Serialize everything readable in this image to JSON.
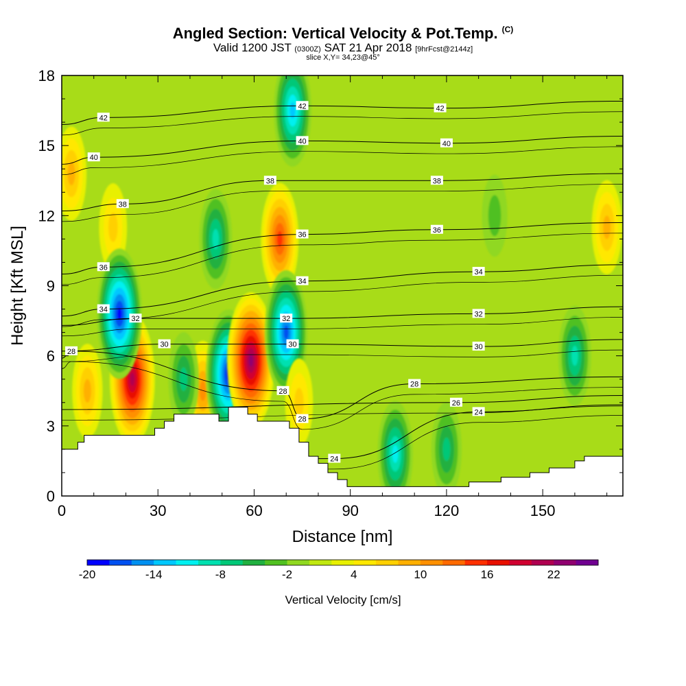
{
  "title": {
    "main": "Angled Section: Vertical Velocity & Pot.Temp.",
    "units_tag": "(C)",
    "valid_prefix": "Valid 1200 JST",
    "valid_utc": "(0300Z)",
    "valid_date": "SAT 21 Apr 2018",
    "forecast_tag": "[9hrFcst@2144z]",
    "slice": "slice X,Y= 34,23@45°"
  },
  "chart_data": {
    "type": "heatmap",
    "xlabel": "Distance [nm]",
    "ylabel": "Height [Kft MSL]",
    "xlim": [
      0,
      175
    ],
    "ylim": [
      0,
      18
    ],
    "x_ticks": [
      0,
      30,
      60,
      90,
      120,
      150
    ],
    "y_ticks": [
      0,
      3,
      6,
      9,
      12,
      15,
      18
    ],
    "colorbar": {
      "title": "Vertical Velocity [cm/s]",
      "levels": [
        -20,
        -18,
        -16,
        -14,
        -12,
        -10,
        -8,
        -6,
        -4,
        -2,
        0,
        2,
        4,
        6,
        8,
        10,
        12,
        14,
        16,
        18,
        20,
        22,
        24,
        26
      ],
      "tick_labels": [
        -20,
        -14,
        -8,
        -2,
        4,
        10,
        16,
        22
      ],
      "colors": [
        "#0000ff",
        "#0050f0",
        "#0090f0",
        "#00c8ff",
        "#00f0f0",
        "#00e0b0",
        "#00c878",
        "#20b040",
        "#50c020",
        "#90d820",
        "#c0e810",
        "#e8f000",
        "#ffe800",
        "#ffd000",
        "#ffb000",
        "#ff9000",
        "#ff6a00",
        "#ff3000",
        "#e81000",
        "#d00030",
        "#b00050",
        "#900070",
        "#700090"
      ]
    },
    "vertical_velocity_features": [
      {
        "x": 3,
        "y": 13.8,
        "value": 8
      },
      {
        "x": 22,
        "y": 5.0,
        "value": 20
      },
      {
        "x": 8,
        "y": 4.5,
        "value": 8
      },
      {
        "x": 16,
        "y": 11.5,
        "value": 6
      },
      {
        "x": 18,
        "y": 7.8,
        "value": -20
      },
      {
        "x": 44,
        "y": 4.5,
        "value": 10
      },
      {
        "x": 38,
        "y": 5.0,
        "value": -8
      },
      {
        "x": 52,
        "y": 5.2,
        "value": -20
      },
      {
        "x": 59,
        "y": 5.8,
        "value": 22
      },
      {
        "x": 48,
        "y": 11.0,
        "value": -10
      },
      {
        "x": 68,
        "y": 11.0,
        "value": 14
      },
      {
        "x": 70,
        "y": 7.0,
        "value": -18
      },
      {
        "x": 74,
        "y": 4.0,
        "value": 6
      },
      {
        "x": 72,
        "y": 16.5,
        "value": -14
      },
      {
        "x": 104,
        "y": 1.8,
        "value": -12
      },
      {
        "x": 120,
        "y": 2.0,
        "value": -8
      },
      {
        "x": 170,
        "y": 11.5,
        "value": 8
      },
      {
        "x": 135,
        "y": 12.0,
        "value": -4
      },
      {
        "x": 160,
        "y": 6.0,
        "value": -10
      }
    ],
    "theta_contours": [
      {
        "value": 24,
        "labels": [
          {
            "x": 85,
            "y": 1.6
          },
          {
            "x": 130,
            "y": 3.6
          }
        ]
      },
      {
        "value": 26,
        "labels": [
          {
            "x": 123,
            "y": 4.0
          }
        ]
      },
      {
        "value": 28,
        "labels": [
          {
            "x": 3,
            "y": 6.2
          },
          {
            "x": 69,
            "y": 4.5
          },
          {
            "x": 75,
            "y": 3.3
          },
          {
            "x": 110,
            "y": 4.8
          }
        ]
      },
      {
        "value": 30,
        "labels": [
          {
            "x": 32,
            "y": 6.5
          },
          {
            "x": 72,
            "y": 6.5
          },
          {
            "x": 130,
            "y": 6.4
          }
        ]
      },
      {
        "value": 32,
        "labels": [
          {
            "x": 23,
            "y": 7.6
          },
          {
            "x": 70,
            "y": 7.6
          },
          {
            "x": 130,
            "y": 7.8
          }
        ]
      },
      {
        "value": 34,
        "labels": [
          {
            "x": 13,
            "y": 8.0
          },
          {
            "x": 75,
            "y": 9.2
          },
          {
            "x": 130,
            "y": 9.6
          }
        ]
      },
      {
        "value": 36,
        "labels": [
          {
            "x": 13,
            "y": 9.8
          },
          {
            "x": 75,
            "y": 11.2
          },
          {
            "x": 117,
            "y": 11.4
          }
        ]
      },
      {
        "value": 38,
        "labels": [
          {
            "x": 19,
            "y": 12.5
          },
          {
            "x": 65,
            "y": 13.5
          },
          {
            "x": 117,
            "y": 13.5
          }
        ]
      },
      {
        "value": 40,
        "labels": [
          {
            "x": 10,
            "y": 14.5
          },
          {
            "x": 75,
            "y": 15.2
          },
          {
            "x": 120,
            "y": 15.1
          }
        ]
      },
      {
        "value": 42,
        "labels": [
          {
            "x": 13,
            "y": 16.2
          },
          {
            "x": 75,
            "y": 16.7
          },
          {
            "x": 118,
            "y": 16.6
          }
        ]
      }
    ],
    "terrain": [
      [
        0,
        2.0
      ],
      [
        5,
        2.0
      ],
      [
        5,
        2.3
      ],
      [
        7,
        2.3
      ],
      [
        7,
        2.6
      ],
      [
        29,
        2.6
      ],
      [
        29,
        2.9
      ],
      [
        32,
        2.9
      ],
      [
        32,
        3.2
      ],
      [
        35,
        3.2
      ],
      [
        35,
        3.5
      ],
      [
        49,
        3.5
      ],
      [
        49,
        3.2
      ],
      [
        52,
        3.2
      ],
      [
        52,
        3.8
      ],
      [
        58,
        3.8
      ],
      [
        58,
        3.5
      ],
      [
        61,
        3.5
      ],
      [
        61,
        3.2
      ],
      [
        71,
        3.2
      ],
      [
        71,
        2.9
      ],
      [
        74,
        2.9
      ],
      [
        74,
        2.3
      ],
      [
        77,
        2.3
      ],
      [
        77,
        1.7
      ],
      [
        80,
        1.7
      ],
      [
        80,
        1.4
      ],
      [
        83,
        1.4
      ],
      [
        83,
        1.0
      ],
      [
        86,
        1.0
      ],
      [
        86,
        0.7
      ],
      [
        89,
        0.7
      ],
      [
        89,
        0.4
      ],
      [
        127,
        0.4
      ],
      [
        127,
        0.6
      ],
      [
        137,
        0.6
      ],
      [
        137,
        0.8
      ],
      [
        146,
        0.8
      ],
      [
        146,
        1.0
      ],
      [
        152,
        1.0
      ],
      [
        152,
        1.2
      ],
      [
        160,
        1.2
      ],
      [
        160,
        1.5
      ],
      [
        163,
        1.5
      ],
      [
        163,
        1.7
      ],
      [
        175,
        1.7
      ]
    ]
  }
}
